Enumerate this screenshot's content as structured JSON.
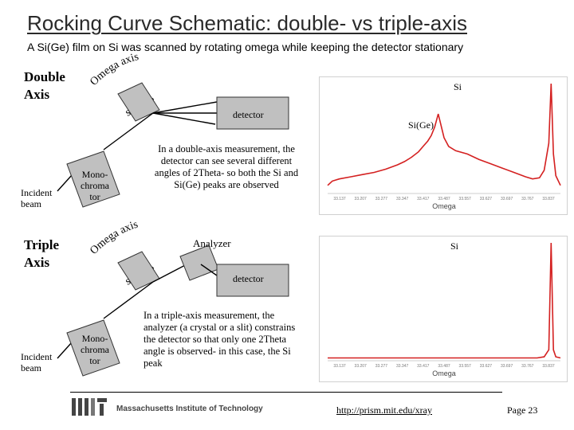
{
  "title": "Rocking Curve Schematic: double- vs triple-axis",
  "subtitle": "A Si(Ge) film on Si was scanned by rotating omega while keeping the detector stationary",
  "double": {
    "heading_line1": "Double",
    "heading_line2": "Axis",
    "omega_axis": "Omega axis",
    "sample": "sample",
    "detector": "detector",
    "incident_line1": "Incident",
    "incident_line2": "beam",
    "mono_line1": "Mono-",
    "mono_line2": "chroma",
    "mono_line3": "tor",
    "description_lines": [
      "In a double-axis measurement, the",
      "detector can see several different",
      "angles of 2Theta- so both the Si and",
      "Si(Ge) peaks are observed"
    ],
    "peak_labels": [
      "Si",
      "Si(Ge)"
    ],
    "xlabel": "Omega"
  },
  "triple": {
    "heading_line1": "Triple",
    "heading_line2": "Axis",
    "omega_axis": "Omega axis",
    "sample": "sample",
    "analyzer": "Analyzer",
    "detector": "detector",
    "incident_line1": "Incident",
    "incident_line2": "beam",
    "mono_line1": "Mono-",
    "mono_line2": "chroma",
    "mono_line3": "tor",
    "description_lines": [
      "In a triple-axis measurement, the",
      "analyzer (a crystal or a slit) constrains",
      "the detector so that only one 2Theta",
      "angle is observed- in this case, the Si",
      "peak"
    ],
    "peak_labels": [
      "Si"
    ],
    "xlabel": "Omega"
  },
  "colors": {
    "curve": "#d42020",
    "diagram_fill": "#c0c0c0",
    "logo": "#444444"
  },
  "footer": {
    "logo_letters": "MIT",
    "institute": "Massachusetts Institute of Technology",
    "url": "http://prism.mit.edu/xray",
    "page": "Page 23"
  },
  "chart_data": [
    {
      "type": "line",
      "title": "",
      "xlabel": "Omega",
      "ylabel": "",
      "x_ticks": [
        "33.137",
        "33.207",
        "33.277",
        "33.347",
        "33.417",
        "33.487",
        "33.557",
        "33.627",
        "33.697",
        "33.767",
        "33.837"
      ],
      "series": [
        {
          "name": "",
          "x": [
            0,
            0.02,
            0.05,
            0.1,
            0.15,
            0.2,
            0.25,
            0.3,
            0.33,
            0.36,
            0.39,
            0.41,
            0.43,
            0.445,
            0.46,
            0.475,
            0.5,
            0.52,
            0.55,
            0.6,
            0.65,
            0.7,
            0.75,
            0.8,
            0.85,
            0.88,
            0.91,
            0.93,
            0.95,
            0.96,
            0.97,
            0.98,
            1
          ],
          "y": [
            0.06,
            0.1,
            0.12,
            0.14,
            0.16,
            0.18,
            0.21,
            0.25,
            0.28,
            0.32,
            0.37,
            0.42,
            0.47,
            0.52,
            0.6,
            0.72,
            0.5,
            0.42,
            0.38,
            0.35,
            0.3,
            0.26,
            0.22,
            0.18,
            0.14,
            0.12,
            0.13,
            0.2,
            0.45,
            1.0,
            0.35,
            0.15,
            0.06
          ]
        }
      ],
      "peaks": [
        {
          "label": "Si(Ge)",
          "x": 0.475
        },
        {
          "label": "Si",
          "x": 0.96
        }
      ]
    },
    {
      "type": "line",
      "title": "",
      "xlabel": "Omega",
      "ylabel": "",
      "x_ticks": [
        "33.137",
        "33.207",
        "33.277",
        "33.347",
        "33.417",
        "33.487",
        "33.557",
        "33.627",
        "33.697",
        "33.767",
        "33.837"
      ],
      "series": [
        {
          "name": "",
          "x": [
            0,
            0.1,
            0.2,
            0.3,
            0.4,
            0.5,
            0.6,
            0.7,
            0.8,
            0.9,
            0.93,
            0.95,
            0.96,
            0.97,
            0.98,
            1
          ],
          "y": [
            0.01,
            0.01,
            0.01,
            0.01,
            0.01,
            0.01,
            0.01,
            0.01,
            0.01,
            0.01,
            0.02,
            0.08,
            1.0,
            0.08,
            0.02,
            0.01
          ]
        }
      ],
      "peaks": [
        {
          "label": "Si",
          "x": 0.96
        }
      ]
    }
  ]
}
